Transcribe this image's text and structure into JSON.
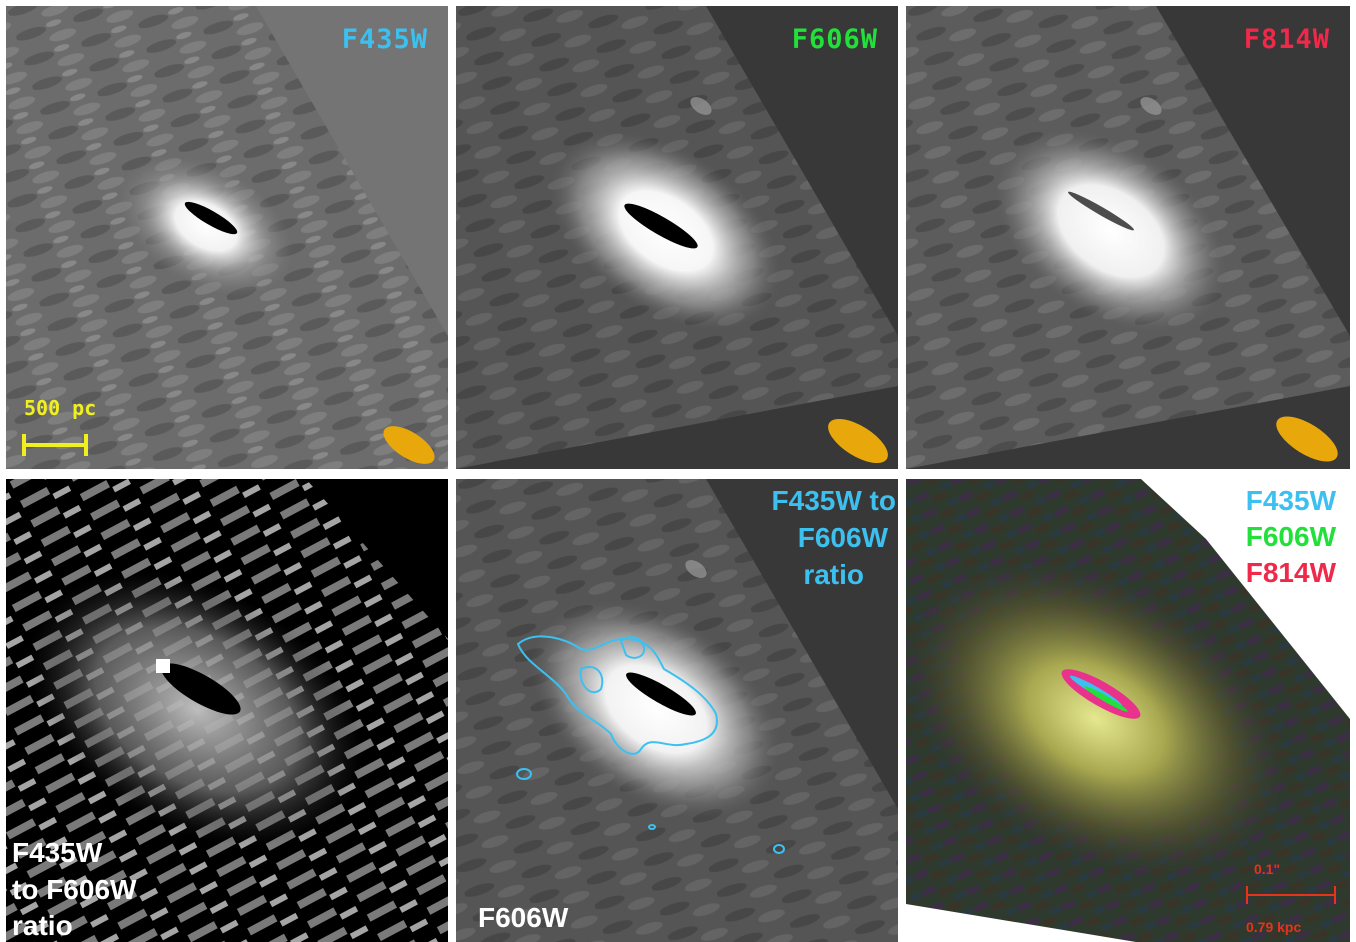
{
  "panels": {
    "f435w": {
      "label": "F435W",
      "label_color": "#3cc0f0"
    },
    "f606w": {
      "label": "F606W",
      "label_color": "#22e03a"
    },
    "f814w": {
      "label": "F814W",
      "label_color": "#f0284a"
    },
    "ratio_map": {
      "label_line1": "F435W",
      "label_line2": "to F606W",
      "label_line3": "ratio",
      "label_color": "#ffffff"
    },
    "contour_overlay": {
      "base_label": "F606W",
      "overlay_label_line1": "F435W to",
      "overlay_label_line2": "F606W",
      "overlay_label_line3": "ratio",
      "overlay_color": "#3cc0f0"
    },
    "rgb_composite": {
      "legend": [
        {
          "label": "F435W",
          "color": "#3cc0f0"
        },
        {
          "label": "F606W",
          "color": "#22e03a"
        },
        {
          "label": "F814W",
          "color": "#f0284a"
        }
      ],
      "scale_angular": "0.1\"",
      "scale_physical": "0.79 kpc",
      "scale_color": "#e8321c"
    }
  },
  "scale_bar": {
    "label": "500 pc",
    "color": "#f0f020"
  },
  "beam_color": "#e8a80c"
}
